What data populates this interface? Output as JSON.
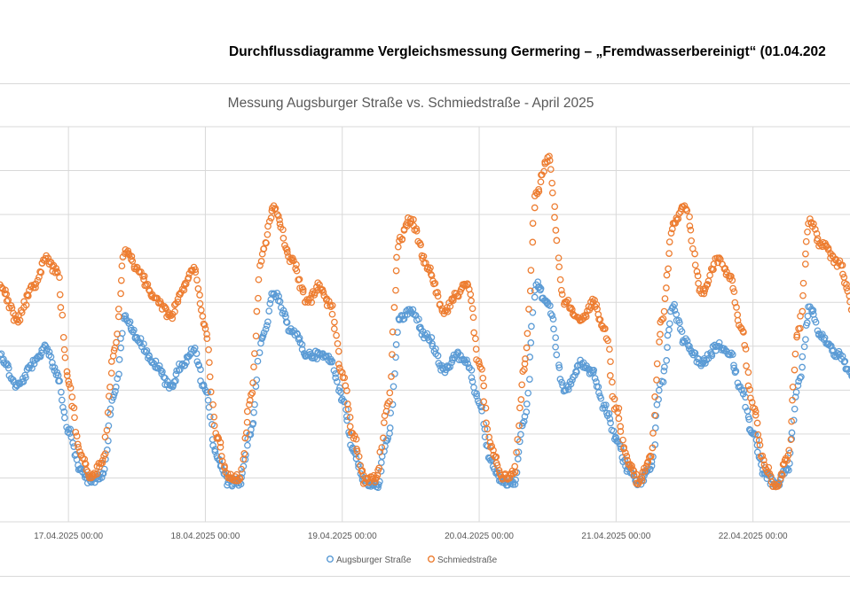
{
  "document": {
    "heading": "Durchflussdiagramme Vergleichsmessung Germering – „Fremdwasserbereinigt“ (01.04.202"
  },
  "chart_data": {
    "type": "scatter",
    "title": "Messung Augsburger Straße vs. Schmiedstraße - April 2025",
    "xlabel": "",
    "ylabel": "",
    "x_ticks": [
      "17.04.2025 00:00",
      "18.04.2025 00:00",
      "19.04.2025 00:00",
      "20.04.2025 00:00",
      "21.04.2025 00:00",
      "22.04.2025 00:00"
    ],
    "x_range": [
      "16.04.2025 12:00",
      "23.04.2025 06:00"
    ],
    "ylim": [
      0,
      9
    ],
    "grid": true,
    "legend_position": "bottom",
    "colors": {
      "augsburger": "#5b9bd5",
      "schmied": "#ed7d31",
      "grid": "#d9d9d9",
      "text": "#595959"
    },
    "marker": "open-circle",
    "series": [
      {
        "name": "Augsburger Straße",
        "color": "#5b9bd5",
        "points": [
          [
            "16.04.2025 12:00",
            3.8
          ],
          [
            "16.04.2025 15:00",
            3.1
          ],
          [
            "16.04.2025 18:00",
            3.6
          ],
          [
            "16.04.2025 20:00",
            4.0
          ],
          [
            "16.04.2025 22:00",
            3.4
          ],
          [
            "17.04.2025 00:00",
            2.1
          ],
          [
            "17.04.2025 02:00",
            1.2
          ],
          [
            "17.04.2025 04:00",
            0.9
          ],
          [
            "17.04.2025 06:00",
            1.1
          ],
          [
            "17.04.2025 08:00",
            2.9
          ],
          [
            "17.04.2025 10:00",
            4.7
          ],
          [
            "17.04.2025 12:00",
            4.2
          ],
          [
            "17.04.2025 15:00",
            3.6
          ],
          [
            "17.04.2025 18:00",
            3.1
          ],
          [
            "17.04.2025 20:00",
            3.6
          ],
          [
            "17.04.2025 22:00",
            3.9
          ],
          [
            "18.04.2025 00:00",
            3.0
          ],
          [
            "18.04.2025 02:00",
            1.5
          ],
          [
            "18.04.2025 04:00",
            0.9
          ],
          [
            "18.04.2025 06:00",
            0.9
          ],
          [
            "18.04.2025 08:00",
            2.1
          ],
          [
            "18.04.2025 10:00",
            4.2
          ],
          [
            "18.04.2025 12:00",
            5.2
          ],
          [
            "18.04.2025 15:00",
            4.4
          ],
          [
            "18.04.2025 18:00",
            3.8
          ],
          [
            "18.04.2025 20:00",
            3.8
          ],
          [
            "18.04.2025 22:00",
            3.7
          ],
          [
            "19.04.2025 00:00",
            2.8
          ],
          [
            "19.04.2025 02:00",
            1.6
          ],
          [
            "19.04.2025 04:00",
            0.9
          ],
          [
            "19.04.2025 06:00",
            0.8
          ],
          [
            "19.04.2025 08:00",
            1.9
          ],
          [
            "19.04.2025 10:00",
            4.6
          ],
          [
            "19.04.2025 12:00",
            4.8
          ],
          [
            "19.04.2025 15:00",
            4.2
          ],
          [
            "19.04.2025 18:00",
            3.4
          ],
          [
            "19.04.2025 20:00",
            3.8
          ],
          [
            "19.04.2025 22:00",
            3.6
          ],
          [
            "20.04.2025 00:00",
            2.7
          ],
          [
            "20.04.2025 02:00",
            1.4
          ],
          [
            "20.04.2025 04:00",
            0.9
          ],
          [
            "20.04.2025 06:00",
            0.9
          ],
          [
            "20.04.2025 08:00",
            2.4
          ],
          [
            "20.04.2025 10:00",
            5.4
          ],
          [
            "20.04.2025 12:00",
            5.0
          ],
          [
            "20.04.2025 15:00",
            3.0
          ],
          [
            "20.04.2025 18:00",
            3.6
          ],
          [
            "20.04.2025 20:00",
            3.4
          ],
          [
            "20.04.2025 22:00",
            2.6
          ],
          [
            "21.04.2025 00:00",
            1.9
          ],
          [
            "21.04.2025 02:00",
            1.2
          ],
          [
            "21.04.2025 04:00",
            0.9
          ],
          [
            "21.04.2025 06:00",
            1.2
          ],
          [
            "21.04.2025 08:00",
            3.2
          ],
          [
            "21.04.2025 10:00",
            4.9
          ],
          [
            "21.04.2025 12:00",
            4.1
          ],
          [
            "21.04.2025 15:00",
            3.6
          ],
          [
            "21.04.2025 18:00",
            4.0
          ],
          [
            "21.04.2025 20:00",
            3.8
          ],
          [
            "21.04.2025 22:00",
            3.0
          ],
          [
            "22.04.2025 00:00",
            2.0
          ],
          [
            "22.04.2025 02:00",
            1.1
          ],
          [
            "22.04.2025 04:00",
            0.8
          ],
          [
            "22.04.2025 06:00",
            1.2
          ],
          [
            "22.04.2025 08:00",
            3.2
          ],
          [
            "22.04.2025 10:00",
            4.9
          ],
          [
            "22.04.2025 12:00",
            4.2
          ],
          [
            "22.04.2025 15:00",
            3.8
          ],
          [
            "22.04.2025 18:00",
            3.2
          ],
          [
            "22.04.2025 20:00",
            2.9
          ],
          [
            "22.04.2025 22:00",
            2.8
          ],
          [
            "23.04.2025 00:00",
            3.0
          ],
          [
            "23.04.2025 02:00",
            3.1
          ],
          [
            "23.04.2025 04:00",
            3.0
          ],
          [
            "23.04.2025 06:00",
            3.0
          ]
        ]
      },
      {
        "name": "Schmiedstraße",
        "color": "#ed7d31",
        "points": [
          [
            "16.04.2025 12:00",
            5.4
          ],
          [
            "16.04.2025 15:00",
            4.6
          ],
          [
            "16.04.2025 18:00",
            5.4
          ],
          [
            "16.04.2025 20:00",
            6.0
          ],
          [
            "16.04.2025 22:00",
            5.7
          ],
          [
            "17.04.2025 00:00",
            3.2
          ],
          [
            "17.04.2025 02:00",
            1.6
          ],
          [
            "17.04.2025 04:00",
            1.0
          ],
          [
            "17.04.2025 06:00",
            1.4
          ],
          [
            "17.04.2025 08:00",
            3.9
          ],
          [
            "17.04.2025 10:00",
            6.2
          ],
          [
            "17.04.2025 12:00",
            5.8
          ],
          [
            "17.04.2025 15:00",
            5.1
          ],
          [
            "17.04.2025 18:00",
            4.7
          ],
          [
            "17.04.2025 20:00",
            5.3
          ],
          [
            "17.04.2025 22:00",
            5.8
          ],
          [
            "18.04.2025 00:00",
            4.4
          ],
          [
            "18.04.2025 02:00",
            1.9
          ],
          [
            "18.04.2025 04:00",
            1.0
          ],
          [
            "18.04.2025 06:00",
            1.0
          ],
          [
            "18.04.2025 08:00",
            2.9
          ],
          [
            "18.04.2025 10:00",
            6.1
          ],
          [
            "18.04.2025 12:00",
            7.2
          ],
          [
            "18.04.2025 15:00",
            6.0
          ],
          [
            "18.04.2025 18:00",
            5.0
          ],
          [
            "18.04.2025 20:00",
            5.4
          ],
          [
            "18.04.2025 22:00",
            4.9
          ],
          [
            "19.04.2025 00:00",
            3.4
          ],
          [
            "19.04.2025 02:00",
            1.9
          ],
          [
            "19.04.2025 04:00",
            0.9
          ],
          [
            "19.04.2025 06:00",
            1.0
          ],
          [
            "19.04.2025 08:00",
            2.7
          ],
          [
            "19.04.2025 10:00",
            6.4
          ],
          [
            "19.04.2025 12:00",
            6.9
          ],
          [
            "19.04.2025 15:00",
            5.8
          ],
          [
            "19.04.2025 18:00",
            4.8
          ],
          [
            "19.04.2025 20:00",
            5.2
          ],
          [
            "19.04.2025 22:00",
            5.4
          ],
          [
            "20.04.2025 00:00",
            3.6
          ],
          [
            "20.04.2025 02:00",
            1.7
          ],
          [
            "20.04.2025 04:00",
            1.0
          ],
          [
            "20.04.2025 06:00",
            1.1
          ],
          [
            "20.04.2025 08:00",
            3.6
          ],
          [
            "20.04.2025 10:00",
            7.5
          ],
          [
            "20.04.2025 12:00",
            8.3
          ],
          [
            "20.04.2025 15:00",
            5.0
          ],
          [
            "20.04.2025 18:00",
            4.6
          ],
          [
            "20.04.2025 20:00",
            5.0
          ],
          [
            "20.04.2025 22:00",
            4.4
          ],
          [
            "21.04.2025 00:00",
            2.6
          ],
          [
            "21.04.2025 02:00",
            1.4
          ],
          [
            "21.04.2025 04:00",
            0.9
          ],
          [
            "21.04.2025 06:00",
            1.5
          ],
          [
            "21.04.2025 08:00",
            4.6
          ],
          [
            "21.04.2025 10:00",
            6.8
          ],
          [
            "21.04.2025 12:00",
            7.2
          ],
          [
            "21.04.2025 15:00",
            5.2
          ],
          [
            "21.04.2025 18:00",
            6.0
          ],
          [
            "21.04.2025 20:00",
            5.6
          ],
          [
            "21.04.2025 22:00",
            4.4
          ],
          [
            "22.04.2025 00:00",
            2.6
          ],
          [
            "22.04.2025 02:00",
            1.3
          ],
          [
            "22.04.2025 04:00",
            0.8
          ],
          [
            "22.04.2025 06:00",
            1.4
          ],
          [
            "22.04.2025 08:00",
            4.4
          ],
          [
            "22.04.2025 10:00",
            6.9
          ],
          [
            "22.04.2025 12:00",
            6.3
          ],
          [
            "22.04.2025 15:00",
            5.9
          ],
          [
            "22.04.2025 18:00",
            4.7
          ],
          [
            "22.04.2025 20:00",
            4.6
          ],
          [
            "22.04.2025 22:00",
            4.5
          ],
          [
            "23.04.2025 00:00",
            4.8
          ],
          [
            "23.04.2025 02:00",
            5.0
          ],
          [
            "23.04.2025 04:00",
            4.9
          ],
          [
            "23.04.2025 06:00",
            5.0
          ]
        ]
      }
    ]
  }
}
